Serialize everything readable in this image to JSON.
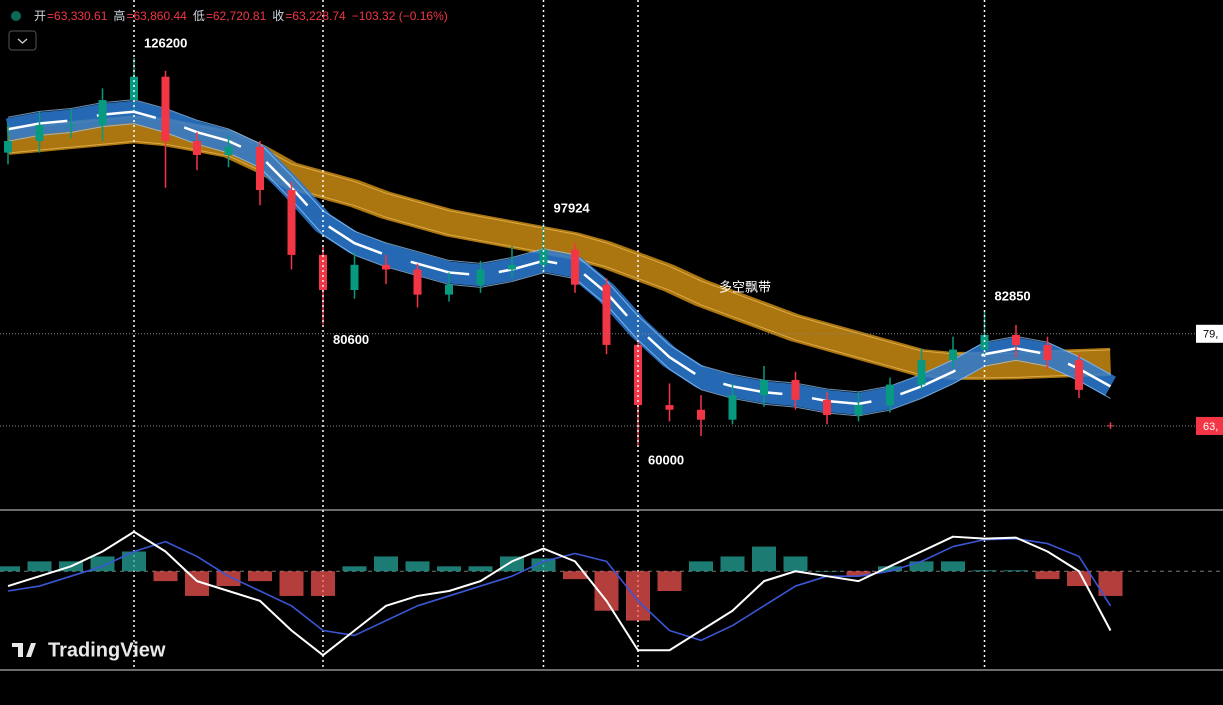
{
  "header": {
    "items": [
      {
        "label": "开",
        "value": "=63,330.61"
      },
      {
        "label": "高",
        "value": "=63,860.44"
      },
      {
        "label": "低",
        "value": "=62,720.81"
      },
      {
        "label": "收",
        "value": "=63,228.74"
      }
    ],
    "change": "−103.32 (−0.16%)"
  },
  "logo": "TradingView",
  "ribbon_label": "多空飘带",
  "chart_data": [
    {
      "type": "candlestick",
      "ylim": [
        49700,
        132700
      ],
      "up_color": "#089981",
      "down_color": "#f23645",
      "open": [
        110000,
        112000,
        114700,
        114700,
        119000,
        123000,
        112000,
        109600,
        111000,
        103600,
        92500,
        86500,
        90800,
        90000,
        85700,
        87400,
        90000,
        90800,
        93400,
        87400,
        77100,
        66800,
        66000,
        64300,
        68500,
        71100,
        67700,
        65100,
        66800,
        70300,
        74500,
        76300,
        78800,
        77100,
        74500,
        63330.61
      ],
      "high": [
        115000,
        117000,
        117500,
        121000,
        126200,
        124000,
        113500,
        113000,
        112000,
        105000,
        94000,
        93000,
        92500,
        91000,
        89500,
        91500,
        94000,
        97924,
        94500,
        88500,
        78000,
        70500,
        68500,
        70500,
        73500,
        72500,
        69000,
        69000,
        71500,
        76500,
        78500,
        82850,
        80500,
        78500,
        75500,
        63860.44
      ],
      "low": [
        108000,
        110000,
        112500,
        112000,
        117000,
        104000,
        107000,
        107500,
        101000,
        90000,
        80600,
        85000,
        87500,
        83500,
        84500,
        86000,
        88500,
        89500,
        86000,
        75500,
        60000,
        64000,
        61500,
        63500,
        66500,
        66000,
        63500,
        64000,
        65500,
        69500,
        73000,
        75500,
        75000,
        73000,
        68000,
        62720.81
      ],
      "close": [
        112000,
        114700,
        114700,
        119000,
        123000,
        112000,
        109600,
        111000,
        103600,
        92500,
        86500,
        90800,
        90000,
        85700,
        87400,
        90000,
        90800,
        93400,
        87400,
        77100,
        66800,
        66000,
        64300,
        68500,
        71100,
        67700,
        65100,
        66800,
        70300,
        74500,
        76300,
        78800,
        77100,
        74500,
        69400,
        63228.74
      ],
      "ribbons": [
        {
          "color": "#c98a12",
          "values": [
            112000,
            112500,
            113000,
            113500,
            114000,
            113500,
            112500,
            111500,
            109000,
            106000,
            104500,
            103000,
            101000,
            99500,
            98000,
            97000,
            96000,
            95000,
            94000,
            92500,
            90500,
            88500,
            86000,
            84000,
            82000,
            80000,
            78500,
            77000,
            75500,
            74000,
            73500,
            73500,
            73600,
            73800,
            74000,
            74200
          ]
        },
        {
          "color": "#2c7bd4",
          "values": [
            114000,
            115000,
            115500,
            116500,
            117000,
            115500,
            113500,
            112000,
            109500,
            104000,
            98000,
            94500,
            92500,
            91000,
            89500,
            89000,
            90000,
            91500,
            90500,
            86000,
            80000,
            75000,
            71500,
            70000,
            69000,
            68500,
            67500,
            67000,
            68000,
            70000,
            72500,
            75500,
            76500,
            75500,
            73000,
            70000
          ]
        }
      ],
      "peak_labels": [
        126200,
        97924,
        82850
      ],
      "trough_labels": [
        80600,
        60000
      ],
      "price_tags": [
        {
          "value": 79000,
          "label": "79,",
          "color": "#ffffff"
        },
        {
          "value": 63228.74,
          "label": "63,",
          "color": "#f23645"
        }
      ]
    },
    {
      "type": "macd",
      "ylim": [
        -10,
        6
      ],
      "up_color": "#26a69a",
      "down_color": "#ef5350",
      "histogram": [
        0.5,
        1,
        1,
        1.5,
        2,
        -1,
        -2.5,
        -1.5,
        -1,
        -2.5,
        -2.5,
        0.5,
        1.5,
        1,
        0.5,
        0.5,
        1.5,
        1.3,
        -0.8,
        -4,
        -5,
        -2,
        1,
        1.5,
        2.5,
        1.5,
        0,
        -0.5,
        0.5,
        1,
        1,
        0.1,
        0.1,
        -0.8,
        -1.5,
        -2.5
      ],
      "macd": {
        "color": "#ffffff",
        "values": [
          -1.5,
          -0.5,
          0.5,
          2,
          4,
          2,
          -1,
          -2,
          -3,
          -6,
          -8.5,
          -6,
          -3.5,
          -2.5,
          -2,
          -1,
          1,
          2.3,
          1,
          -3,
          -8,
          -8,
          -6,
          -4,
          -1,
          0,
          -0.5,
          -1,
          0.5,
          2,
          3.5,
          3.3,
          3.4,
          2,
          0,
          -6
        ]
      },
      "signal": {
        "color": "#3a56d4",
        "values": [
          -2,
          -1.5,
          -0.5,
          0.5,
          2,
          3,
          1.5,
          -0.5,
          -2,
          -3.5,
          -6,
          -6.5,
          -5,
          -3.5,
          -2.5,
          -1.5,
          -0.5,
          1,
          1.8,
          1,
          -3,
          -6,
          -7,
          -5.5,
          -3.5,
          -1.5,
          -0.5,
          -0.5,
          0,
          1,
          2.5,
          3.2,
          3.3,
          2.8,
          1.5,
          -3.5
        ]
      }
    }
  ]
}
